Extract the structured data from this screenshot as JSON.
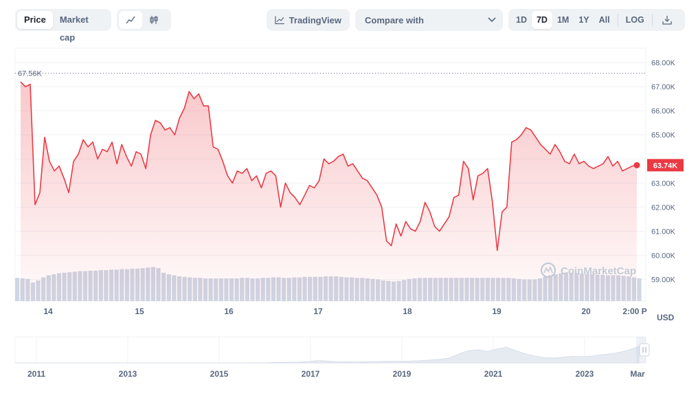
{
  "toolbar": {
    "metric_tabs": [
      "Price",
      "Market cap"
    ],
    "active_metric": "Price",
    "chart_style_icons": [
      "line-chart-icon",
      "candlestick-icon"
    ],
    "tradingview_label": "TradingView",
    "compare_label": "Compare with",
    "ranges": [
      "1D",
      "7D",
      "1M",
      "1Y",
      "All"
    ],
    "active_range": "7D",
    "log_label": "LOG",
    "download_icon": "download-icon"
  },
  "currency_label": "USD",
  "watermark": "CoinMarketCap",
  "colors": {
    "line": "#ea3943",
    "fill_top": "#f7c5c8",
    "volume": "#cfd6e4",
    "accent": "#ea3943",
    "navigator": "#e6ebf2"
  },
  "chart_data": {
    "type": "line",
    "series": [
      {
        "values": [
          67.2,
          67.0,
          67.1,
          62.1,
          62.6,
          64.9,
          63.9,
          63.5,
          63.7,
          63.2,
          62.6,
          63.9,
          64.2,
          64.8,
          64.5,
          64.7,
          64.0,
          64.4,
          64.3,
          64.7,
          63.8,
          64.6,
          64.1,
          63.7,
          64.3,
          64.2,
          63.6,
          65.0,
          65.6,
          65.5,
          65.2,
          65.3,
          65.0,
          65.7,
          66.1,
          66.8,
          66.5,
          66.7,
          66.2,
          66.2,
          64.5,
          64.4,
          63.9,
          63.3,
          63.0,
          63.5,
          63.4,
          63.6,
          63.1,
          63.3,
          62.8,
          63.4,
          63.5,
          63.3,
          62.0,
          63.0,
          62.6,
          62.4,
          62.1,
          62.5,
          62.9,
          62.8,
          63.1,
          64.0,
          63.8,
          63.9,
          64.1,
          64.2,
          63.7,
          63.8,
          63.5,
          63.2,
          63.1,
          62.8,
          62.5,
          62.0,
          60.6,
          60.4,
          61.3,
          60.8,
          61.4,
          61.1,
          61.0,
          61.4,
          62.2,
          61.8,
          61.2,
          61.0,
          61.3,
          61.6,
          62.4,
          62.5,
          63.9,
          63.6,
          62.3,
          63.3,
          63.4,
          63.6,
          62.2,
          60.2,
          61.8,
          62.0,
          64.7,
          64.8,
          65.0,
          65.3,
          65.2,
          64.9,
          64.6,
          64.4,
          64.2,
          64.6,
          64.3,
          63.9,
          63.8,
          64.2,
          63.8,
          63.9,
          63.7,
          63.6,
          63.7,
          63.8,
          64.1,
          63.7,
          63.9,
          63.5,
          63.6,
          63.7,
          63.74
        ]
      }
    ],
    "x_tick_labels": [
      "14",
      "15",
      "16",
      "17",
      "18",
      "19",
      "20",
      "2:00 P"
    ],
    "y_tick_labels": [
      "68.00K",
      "67.00K",
      "66.00K",
      "65.00K",
      "64.00K",
      "63.00K",
      "62.00K",
      "61.00K",
      "60.00K",
      "59.00K"
    ],
    "ylim": [
      58.1,
      68.6
    ],
    "high_label": "67.56K",
    "high_value": 67.56,
    "current_label": "63.74K",
    "current_value": 63.74,
    "volume_values": [
      0.45,
      0.44,
      0.43,
      0.36,
      0.4,
      0.46,
      0.5,
      0.52,
      0.54,
      0.55,
      0.56,
      0.57,
      0.58,
      0.58,
      0.59,
      0.59,
      0.6,
      0.6,
      0.61,
      0.61,
      0.62,
      0.62,
      0.63,
      0.63,
      0.64,
      0.65,
      0.66,
      0.64,
      0.55,
      0.52,
      0.5,
      0.48,
      0.47,
      0.46,
      0.45,
      0.45,
      0.44,
      0.44,
      0.44,
      0.44,
      0.44,
      0.44,
      0.44,
      0.45,
      0.45,
      0.44,
      0.44,
      0.45,
      0.45,
      0.46,
      0.46,
      0.45,
      0.45,
      0.46,
      0.46,
      0.47,
      0.47,
      0.47,
      0.47,
      0.48,
      0.48,
      0.48,
      0.47,
      0.46,
      0.46,
      0.45,
      0.45,
      0.44,
      0.43,
      0.42,
      0.4,
      0.39,
      0.38,
      0.39,
      0.41,
      0.43,
      0.44,
      0.45,
      0.45,
      0.45,
      0.45,
      0.45,
      0.45,
      0.45,
      0.45,
      0.45,
      0.45,
      0.45,
      0.45,
      0.45,
      0.45,
      0.45,
      0.45,
      0.45,
      0.45,
      0.44,
      0.43,
      0.42,
      0.42,
      0.42,
      0.44,
      0.47,
      0.5,
      0.52,
      0.54,
      0.55,
      0.55,
      0.54,
      0.53,
      0.52,
      0.52,
      0.51,
      0.51,
      0.5,
      0.5,
      0.5,
      0.49,
      0.48,
      0.46,
      0.44
    ],
    "volume_max": 1.0,
    "navigator": {
      "x_tick_labels": [
        "2011",
        "2013",
        "2015",
        "2017",
        "2019",
        "2021",
        "2023",
        "Mar"
      ],
      "values": [
        0.0,
        0.0,
        0.0,
        0.0,
        0.0,
        0.0,
        0.0,
        0.0,
        0.01,
        0.0,
        0.0,
        0.0,
        0.0,
        0.0,
        0.0,
        0.0,
        0.0,
        0.0,
        0.0,
        0.0,
        0.0,
        0.0,
        0.01,
        0.01,
        0.02,
        0.03,
        0.04,
        0.05,
        0.08,
        0.14,
        0.12,
        0.08,
        0.07,
        0.06,
        0.07,
        0.08,
        0.09,
        0.1,
        0.1,
        0.12,
        0.14,
        0.18,
        0.22,
        0.3,
        0.55,
        0.75,
        0.8,
        0.7,
        0.85,
        0.95,
        0.75,
        0.55,
        0.42,
        0.33,
        0.3,
        0.35,
        0.4,
        0.38,
        0.42,
        0.5,
        0.55,
        0.65,
        0.8,
        1.0
      ]
    }
  }
}
